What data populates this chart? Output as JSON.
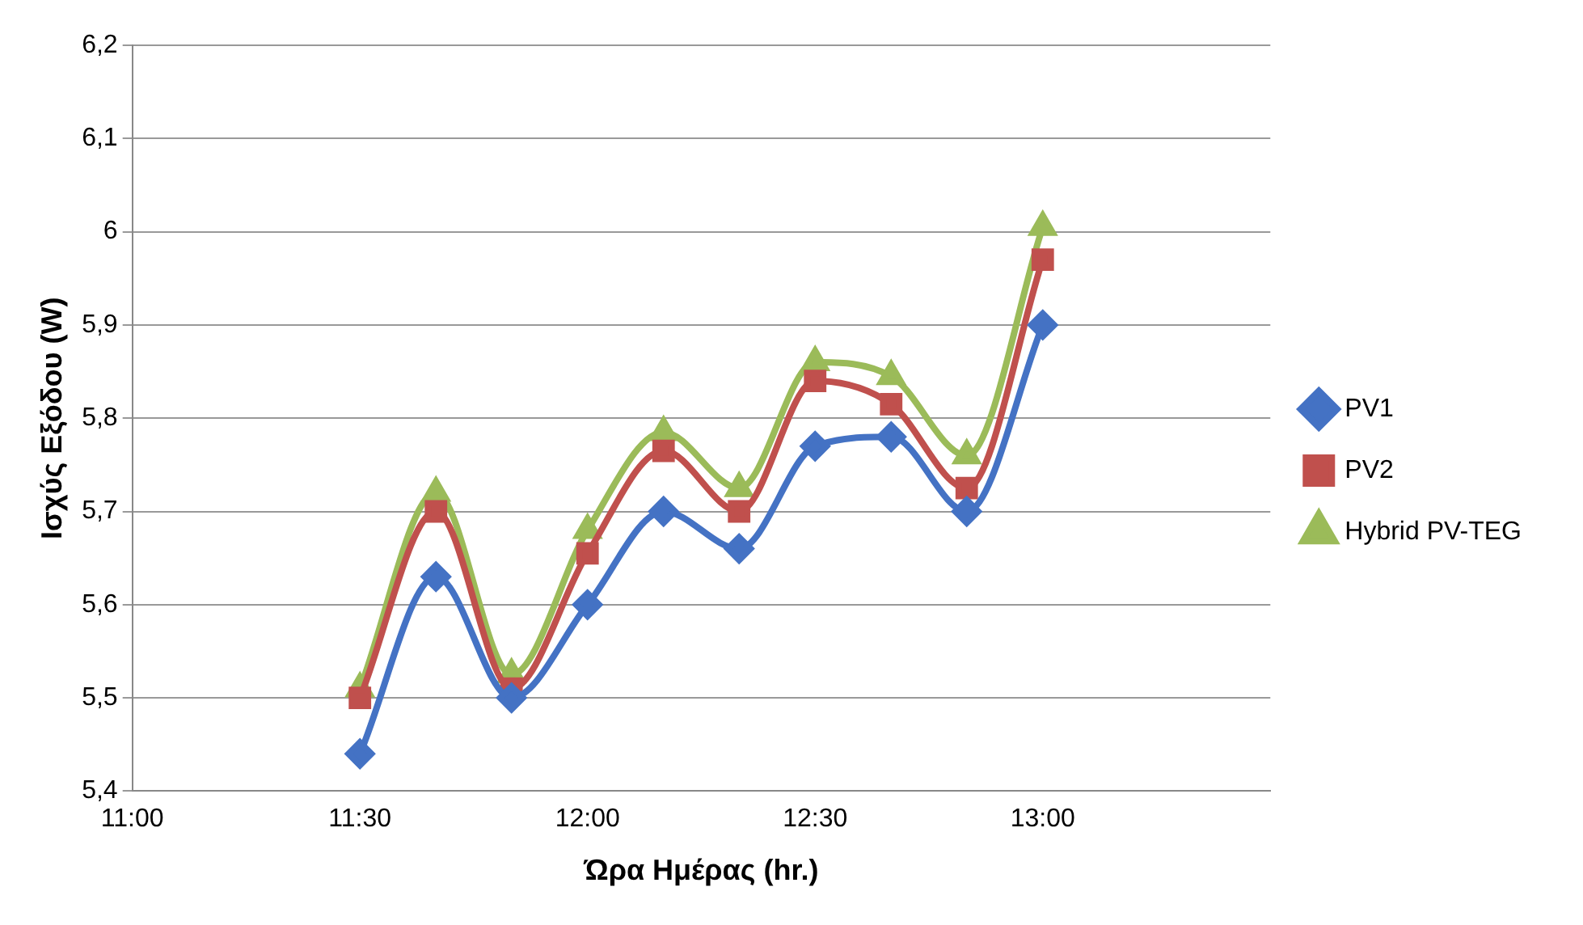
{
  "chart_data": {
    "type": "line",
    "xlabel": "Ώρα Ημέρας (hr.)",
    "ylabel": "Ισχύς Εξόδου (W)",
    "x": [
      11.5,
      11.667,
      11.833,
      12,
      12.167,
      12.333,
      12.5,
      12.667,
      12.833,
      13
    ],
    "series": [
      {
        "name": "PV1",
        "color": "#4472c4",
        "marker": "diamond",
        "values": [
          5.44,
          5.63,
          5.5,
          5.6,
          5.7,
          5.66,
          5.77,
          5.78,
          5.7,
          5.9
        ]
      },
      {
        "name": "PV2",
        "color": "#c0504d",
        "marker": "square",
        "values": [
          5.5,
          5.7,
          5.51,
          5.655,
          5.765,
          5.7,
          5.84,
          5.815,
          5.725,
          5.97
        ]
      },
      {
        "name": "Hybrid PV-TEG",
        "color": "#9bbb59",
        "marker": "triangle",
        "values": [
          5.51,
          5.72,
          5.525,
          5.68,
          5.785,
          5.725,
          5.86,
          5.845,
          5.76,
          6.005
        ]
      }
    ],
    "xlim": [
      11,
      13.5
    ],
    "xticks": [
      {
        "value": 11,
        "label": "11:00"
      },
      {
        "value": 11.5,
        "label": "11:30"
      },
      {
        "value": 12,
        "label": "12:00"
      },
      {
        "value": 12.5,
        "label": "12:30"
      },
      {
        "value": 13,
        "label": "13:00"
      }
    ],
    "ylim": [
      5.4,
      6.2
    ],
    "yticks": [
      {
        "value": 5.4,
        "label": "5,4"
      },
      {
        "value": 5.5,
        "label": "5,5"
      },
      {
        "value": 5.6,
        "label": "5,6"
      },
      {
        "value": 5.7,
        "label": "5,7"
      },
      {
        "value": 5.8,
        "label": "5,8"
      },
      {
        "value": 5.9,
        "label": "5,9"
      },
      {
        "value": 6,
        "label": "6"
      },
      {
        "value": 6.1,
        "label": "6,1"
      },
      {
        "value": 6.2,
        "label": "6,2"
      }
    ],
    "grid": "y",
    "legend": "right",
    "line_style": "solid"
  }
}
